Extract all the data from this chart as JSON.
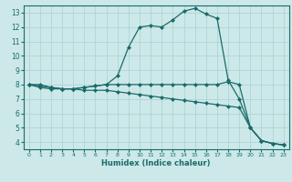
{
  "xlabel": "Humidex (Indice chaleur)",
  "bg_color": "#cce8e8",
  "line_color": "#1a6b6b",
  "grid_color": "#aad0d0",
  "xlim": [
    -0.5,
    23.5
  ],
  "ylim": [
    3.5,
    13.5
  ],
  "xticks": [
    0,
    1,
    2,
    3,
    4,
    5,
    6,
    7,
    8,
    9,
    10,
    11,
    12,
    13,
    14,
    15,
    16,
    17,
    18,
    19,
    20,
    21,
    22,
    23
  ],
  "yticks": [
    4,
    5,
    6,
    7,
    8,
    9,
    10,
    11,
    12,
    13
  ],
  "lines": [
    {
      "x": [
        0,
        1,
        2,
        3,
        4,
        5,
        6,
        7,
        8,
        9,
        10,
        11,
        12,
        13,
        14,
        15,
        16,
        17,
        18,
        19,
        20,
        21,
        22,
        23
      ],
      "y": [
        8.0,
        8.0,
        7.8,
        7.7,
        7.7,
        7.8,
        7.9,
        8.0,
        8.6,
        10.6,
        12.0,
        12.1,
        12.0,
        12.5,
        13.1,
        13.3,
        12.9,
        12.6,
        8.3,
        7.0,
        5.0,
        4.1,
        3.9,
        3.8
      ]
    },
    {
      "x": [
        0,
        1,
        2,
        3,
        4,
        5,
        6,
        7,
        8,
        9,
        10,
        11,
        12,
        13,
        14,
        15,
        16,
        17,
        18,
        19,
        20,
        21,
        22,
        23
      ],
      "y": [
        8.0,
        7.9,
        7.8,
        7.7,
        7.7,
        7.8,
        7.9,
        8.0,
        8.0,
        8.0,
        8.0,
        8.0,
        8.0,
        8.0,
        8.0,
        8.0,
        8.0,
        8.0,
        8.2,
        8.0,
        5.0,
        4.1,
        3.9,
        3.8
      ]
    },
    {
      "x": [
        0,
        1,
        2,
        3,
        4,
        5,
        6,
        7,
        8,
        9,
        10,
        11,
        12,
        13,
        14,
        15,
        16,
        17,
        18,
        19,
        20,
        21,
        22,
        23
      ],
      "y": [
        8.0,
        7.8,
        7.7,
        7.7,
        7.7,
        7.6,
        7.6,
        7.6,
        7.5,
        7.4,
        7.3,
        7.2,
        7.1,
        7.0,
        6.9,
        6.8,
        6.7,
        6.6,
        6.5,
        6.4,
        5.0,
        4.1,
        3.9,
        3.8
      ]
    }
  ],
  "marker": "D",
  "markersize": 2.0,
  "linewidth": 0.9,
  "xlabel_fontsize": 6.0,
  "tick_fontsize_x": 4.5,
  "tick_fontsize_y": 5.5
}
